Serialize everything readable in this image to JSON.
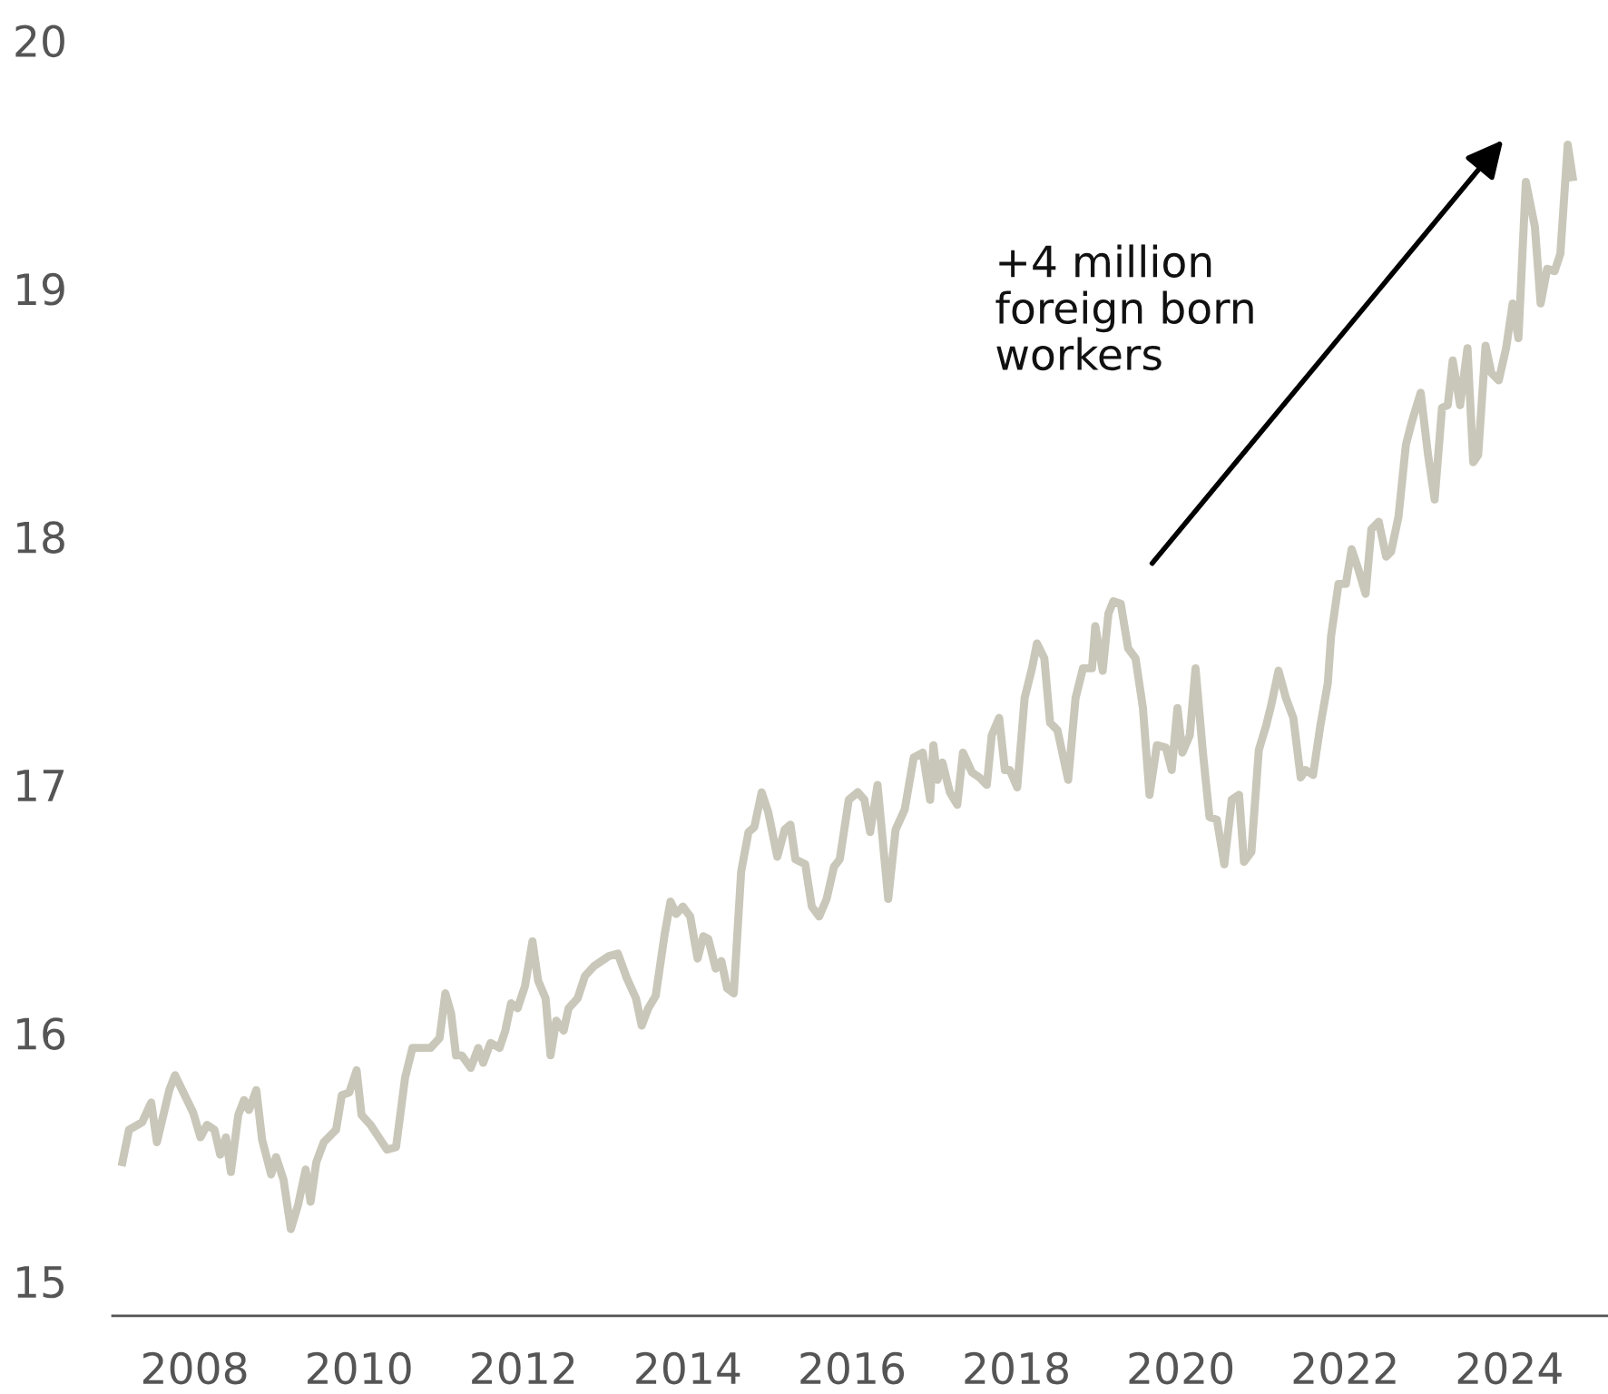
{
  "chart_data": {
    "type": "line",
    "x": [
      2007.12,
      2007.2,
      2007.36,
      2007.47,
      2007.54,
      2007.69,
      2007.76,
      2007.98,
      2008.07,
      2008.15,
      2008.24,
      2008.31,
      2008.38,
      2008.44,
      2008.53,
      2008.6,
      2008.66,
      2008.75,
      2008.82,
      2008.93,
      2008.99,
      2009.08,
      2009.17,
      2009.26,
      2009.35,
      2009.41,
      2009.48,
      2009.57,
      2009.72,
      2009.79,
      2009.88,
      2009.97,
      2010.03,
      2010.14,
      2010.28,
      2010.34,
      2010.45,
      2010.56,
      2010.65,
      2010.78,
      2010.87,
      2010.98,
      2011.05,
      2011.12,
      2011.18,
      2011.25,
      2011.36,
      2011.45,
      2011.51,
      2011.6,
      2011.71,
      2011.78,
      2011.85,
      2011.93,
      2012.02,
      2012.11,
      2012.18,
      2012.27,
      2012.33,
      2012.4,
      2012.49,
      2012.55,
      2012.66,
      2012.75,
      2012.86,
      2013.04,
      2013.15,
      2013.26,
      2013.37,
      2013.44,
      2013.52,
      2013.61,
      2013.72,
      2013.79,
      2013.86,
      2013.94,
      2014.03,
      2014.12,
      2014.19,
      2014.25,
      2014.34,
      2014.41,
      2014.48,
      2014.56,
      2014.65,
      2014.74,
      2014.81,
      2014.9,
      2014.98,
      2015.09,
      2015.18,
      2015.25,
      2015.31,
      2015.43,
      2015.51,
      2015.6,
      2015.69,
      2015.78,
      2015.85,
      2015.96,
      2016.07,
      2016.15,
      2016.22,
      2016.31,
      2016.44,
      2016.53,
      2016.64,
      2016.75,
      2016.86,
      2016.95,
      2016.99,
      2017.04,
      2017.1,
      2017.19,
      2017.28,
      2017.35,
      2017.46,
      2017.55,
      2017.64,
      2017.7,
      2017.79,
      2017.86,
      2017.92,
      2018.01,
      2018.1,
      2018.19,
      2018.25,
      2018.34,
      2018.41,
      2018.5,
      2018.63,
      2018.72,
      2018.81,
      2018.92,
      2018.96,
      2019.05,
      2019.12,
      2019.18,
      2019.27,
      2019.36,
      2019.45,
      2019.54,
      2019.62,
      2019.71,
      2019.82,
      2019.89,
      2019.96,
      2020.02,
      2020.11,
      2020.18,
      2020.27,
      2020.35,
      2020.44,
      2020.53,
      2020.62,
      2020.71,
      2020.77,
      2020.86,
      2020.95,
      2021.04,
      2021.1,
      2021.19,
      2021.28,
      2021.37,
      2021.46,
      2021.52,
      2021.61,
      2021.7,
      2021.79,
      2021.83,
      2021.92,
      2022.01,
      2022.08,
      2022.17,
      2022.25,
      2022.32,
      2022.41,
      2022.5,
      2022.56,
      2022.65,
      2022.74,
      2022.81,
      2022.92,
      2023.01,
      2023.09,
      2023.18,
      2023.25,
      2023.31,
      2023.4,
      2023.49,
      2023.56,
      2023.62,
      2023.71,
      2023.78,
      2023.87,
      2023.96,
      2024.04,
      2024.11,
      2024.2,
      2024.31,
      2024.38,
      2024.46,
      2024.55,
      2024.62,
      2024.71,
      2024.77
    ],
    "series": [
      {
        "color": "#c9c7b9",
        "values": [
          15.48,
          15.61,
          15.64,
          15.72,
          15.56,
          15.77,
          15.83,
          15.68,
          15.58,
          15.63,
          15.61,
          15.51,
          15.58,
          15.44,
          15.67,
          15.73,
          15.69,
          15.77,
          15.57,
          15.43,
          15.5,
          15.41,
          15.21,
          15.31,
          15.45,
          15.32,
          15.48,
          15.56,
          15.61,
          15.75,
          15.76,
          15.85,
          15.67,
          15.63,
          15.56,
          15.53,
          15.54,
          15.82,
          15.94,
          15.94,
          15.94,
          15.98,
          16.16,
          16.08,
          15.91,
          15.91,
          15.86,
          15.94,
          15.88,
          15.96,
          15.94,
          16.01,
          16.12,
          16.1,
          16.19,
          16.37,
          16.21,
          16.14,
          15.91,
          16.05,
          16.01,
          16.1,
          16.14,
          16.23,
          16.27,
          16.31,
          16.32,
          16.22,
          16.14,
          16.03,
          16.1,
          16.15,
          16.4,
          16.53,
          16.48,
          16.51,
          16.47,
          16.3,
          16.39,
          16.38,
          16.26,
          16.29,
          16.18,
          16.16,
          16.65,
          16.81,
          16.83,
          16.97,
          16.89,
          16.71,
          16.82,
          16.84,
          16.7,
          16.68,
          16.51,
          16.47,
          16.54,
          16.67,
          16.7,
          16.94,
          16.97,
          16.94,
          16.81,
          17.0,
          16.54,
          16.82,
          16.9,
          17.11,
          17.13,
          16.94,
          17.16,
          17.02,
          17.09,
          16.97,
          16.92,
          17.13,
          17.05,
          17.03,
          17.0,
          17.2,
          17.27,
          17.06,
          17.06,
          16.99,
          17.35,
          17.47,
          17.57,
          17.51,
          17.25,
          17.22,
          17.02,
          17.35,
          17.47,
          17.47,
          17.64,
          17.46,
          17.69,
          17.74,
          17.73,
          17.55,
          17.51,
          17.31,
          16.96,
          17.16,
          17.15,
          17.06,
          17.31,
          17.13,
          17.2,
          17.47,
          17.13,
          16.87,
          16.86,
          16.68,
          16.94,
          16.96,
          16.69,
          16.73,
          17.14,
          17.24,
          17.32,
          17.46,
          17.35,
          17.27,
          17.03,
          17.06,
          17.04,
          17.24,
          17.41,
          17.6,
          17.81,
          17.81,
          17.95,
          17.86,
          17.77,
          18.03,
          18.06,
          17.92,
          17.94,
          18.08,
          18.37,
          18.46,
          18.58,
          18.33,
          18.15,
          18.52,
          18.53,
          18.71,
          18.53,
          18.76,
          18.3,
          18.33,
          18.77,
          18.66,
          18.63,
          18.76,
          18.94,
          18.8,
          19.43,
          19.25,
          18.94,
          19.08,
          19.07,
          19.14,
          19.58,
          19.45
        ]
      }
    ],
    "xlim": [
      2007.0,
      2025.2
    ],
    "ylim": [
      14.86,
      20.0
    ],
    "xticks": [
      2008,
      2010,
      2012,
      2014,
      2016,
      2018,
      2020,
      2022,
      2024
    ],
    "yticks": [
      15,
      16,
      17,
      18,
      19,
      20
    ],
    "grid": false,
    "marker": "none",
    "line_style": "solid",
    "annotations": [
      "+4 million\nforeign born\nworkers"
    ]
  }
}
